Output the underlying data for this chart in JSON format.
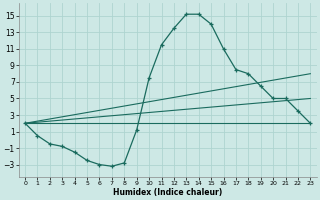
{
  "xlabel": "Humidex (Indice chaleur)",
  "bg_color": "#cde8e5",
  "grid_color": "#aed4d0",
  "line_color": "#1a6b5e",
  "x_ticks": [
    0,
    1,
    2,
    3,
    4,
    5,
    6,
    7,
    8,
    9,
    10,
    11,
    12,
    13,
    14,
    15,
    16,
    17,
    18,
    19,
    20,
    21,
    22,
    23
  ],
  "y_ticks": [
    -3,
    -1,
    1,
    3,
    5,
    7,
    9,
    11,
    13,
    15
  ],
  "ylim": [
    -4.5,
    16.5
  ],
  "xlim": [
    -0.5,
    23.5
  ],
  "line1_x": [
    0,
    1,
    2,
    3,
    4,
    5,
    6,
    7,
    8,
    9,
    10,
    11,
    12,
    13,
    14,
    15,
    16,
    17,
    18,
    19,
    20,
    21,
    22,
    23
  ],
  "line1_y": [
    2,
    0.5,
    -0.5,
    -0.8,
    -1.5,
    -2.5,
    -3,
    -3.2,
    -2.8,
    1.2,
    7.5,
    11.5,
    13.5,
    15.2,
    15.2,
    14.0,
    11.0,
    8.5,
    8.0,
    6.5,
    5.0,
    5.0,
    3.5,
    2.0
  ],
  "line2_x": [
    0,
    23
  ],
  "line2_y": [
    2.0,
    2.0
  ],
  "line3_x": [
    0,
    23
  ],
  "line3_y": [
    2.0,
    5.0
  ],
  "line4_x": [
    0,
    23
  ],
  "line4_y": [
    2.0,
    8.0
  ]
}
